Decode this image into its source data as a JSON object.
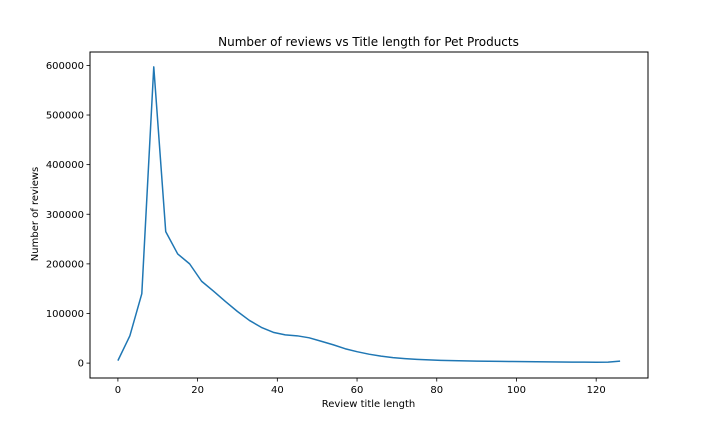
{
  "chart_data": {
    "type": "line",
    "title": "Number of reviews vs Title length for Pet Products",
    "xlabel": "Review title length",
    "ylabel": "Number of reviews",
    "xlim": [
      -7,
      133
    ],
    "ylim": [
      -30000,
      627000
    ],
    "xticks": [
      0,
      20,
      40,
      60,
      80,
      100,
      120
    ],
    "yticks": [
      0,
      100000,
      200000,
      300000,
      400000,
      500000,
      600000
    ],
    "grid": false,
    "line_color": "#1f77b4",
    "series": [
      {
        "x": [
          0,
          3,
          6,
          9,
          12,
          15,
          18,
          21,
          24,
          27,
          30,
          33,
          36,
          39,
          42,
          45,
          48,
          51,
          54,
          57,
          60,
          63,
          66,
          69,
          72,
          75,
          78,
          81,
          84,
          87,
          90,
          93,
          96,
          99,
          102,
          105,
          108,
          111,
          114,
          117,
          120,
          123,
          126
        ],
        "y": [
          5000,
          55000,
          140000,
          597000,
          265000,
          220000,
          200000,
          165000,
          145000,
          124000,
          104000,
          86000,
          72000,
          62000,
          57000,
          55000,
          51000,
          44000,
          37000,
          29000,
          23000,
          18000,
          14000,
          11000,
          9000,
          7500,
          6500,
          5500,
          5000,
          4500,
          4000,
          3800,
          3500,
          3200,
          3000,
          2700,
          2400,
          2200,
          2000,
          1900,
          1800,
          2000,
          4000
        ]
      }
    ]
  }
}
